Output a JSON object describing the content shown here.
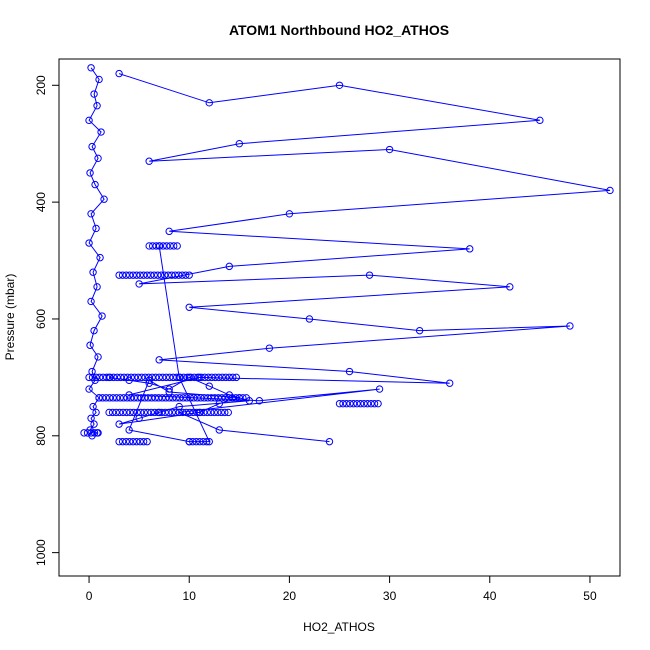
{
  "chart_data": {
    "type": "scatter",
    "title": "ATOM1 Northbound HO2_ATHOS",
    "xlabel": "HO2_ATHOS",
    "ylabel": "Pressure (mbar)",
    "xlim": [
      -3,
      53
    ],
    "ylim": [
      1040,
      155
    ],
    "y_reversed": true,
    "x_ticks": [
      0,
      10,
      20,
      30,
      40,
      50
    ],
    "y_ticks": [
      200,
      400,
      600,
      800,
      1000
    ],
    "point_style": "open-circle-connected",
    "series_color": "#0000ff",
    "grid": false,
    "legend": "none",
    "series": [
      {
        "x": [
          0.2,
          1.0,
          0.5,
          0.8,
          0.0,
          1.2,
          0.3,
          0.9,
          0.1,
          0.6,
          1.5,
          0.2,
          0.7,
          0.0,
          1.1,
          0.4,
          0.8,
          0.2,
          1.3,
          0.5,
          0.1,
          0.9,
          0.3,
          0.6,
          0.0,
          1.0,
          0.4,
          0.7,
          0.2,
          0.5,
          0.1,
          0.8,
          0.3
        ],
        "y": [
          170,
          190,
          215,
          235,
          260,
          280,
          305,
          325,
          350,
          370,
          395,
          420,
          445,
          470,
          495,
          520,
          545,
          570,
          595,
          620,
          645,
          665,
          690,
          705,
          720,
          735,
          750,
          760,
          770,
          780,
          790,
          795,
          800
        ]
      },
      {
        "x": [
          3,
          12,
          25,
          45,
          15,
          6,
          30,
          52,
          20,
          8,
          38,
          14,
          5,
          28,
          42,
          10,
          22,
          33,
          48,
          18,
          7,
          26,
          36,
          11,
          4,
          17,
          29,
          9,
          13,
          24
        ],
        "y": [
          180,
          230,
          200,
          260,
          300,
          330,
          310,
          380,
          420,
          450,
          480,
          510,
          540,
          525,
          545,
          580,
          600,
          620,
          612,
          650,
          670,
          690,
          710,
          700,
          730,
          740,
          720,
          760,
          790,
          810
        ]
      },
      {
        "x": [
          2,
          4,
          6,
          8,
          10,
          12,
          14,
          16,
          9,
          7,
          5,
          3,
          11,
          13,
          15,
          8,
          6,
          4,
          10,
          12,
          9,
          7
        ],
        "y": [
          700,
          705,
          710,
          720,
          700,
          715,
          730,
          740,
          750,
          760,
          770,
          780,
          760,
          745,
          735,
          725,
          705,
          790,
          810,
          810,
          700,
          475
        ]
      }
    ],
    "dense_bands": [
      {
        "y": 700,
        "x_range": [
          0,
          15
        ]
      },
      {
        "y": 735,
        "x_range": [
          1,
          16
        ]
      },
      {
        "y": 760,
        "x_range": [
          2,
          14
        ]
      },
      {
        "y": 525,
        "x_range": [
          3,
          10
        ]
      },
      {
        "y": 475,
        "x_range": [
          6,
          9
        ]
      },
      {
        "y": 810,
        "x_range": [
          3,
          6
        ]
      },
      {
        "y": 810,
        "x_range": [
          10,
          12
        ]
      },
      {
        "y": 795,
        "x_range": [
          -0.5,
          1
        ]
      },
      {
        "y": 745,
        "x_range": [
          25,
          29
        ]
      }
    ]
  }
}
